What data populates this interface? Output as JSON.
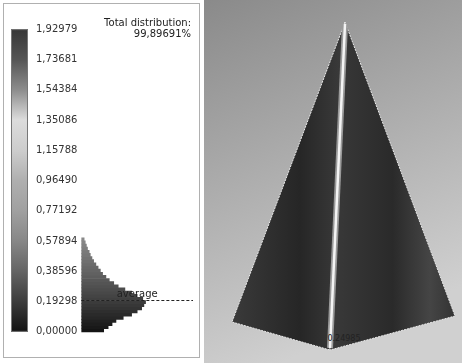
{
  "chart_data": {
    "type": "histogram",
    "orientation": "horizontal",
    "bins": [
      0,
      0.02,
      0.04,
      0.06,
      0.08,
      0.1,
      0.12,
      0.14,
      0.16,
      0.18,
      0.2,
      0.22,
      0.24,
      0.26,
      0.28,
      0.3,
      0.32,
      0.34,
      0.36,
      0.38,
      0.4,
      0.42,
      0.44,
      0.46,
      0.48,
      0.5,
      0.52,
      0.54,
      0.56,
      0.58,
      0.6
    ],
    "counts": [
      40,
      48,
      55,
      62,
      75,
      90,
      100,
      108,
      112,
      115,
      110,
      100,
      90,
      78,
      66,
      58,
      50,
      44,
      38,
      34,
      30,
      26,
      22,
      19,
      16,
      14,
      11,
      9,
      7,
      5
    ],
    "ylim": [
      0,
      1.92979
    ],
    "yticks": [
      {
        "value": 0,
        "label": "0,00000"
      },
      {
        "value": 0.19298,
        "label": "0,19298"
      },
      {
        "value": 0.38596,
        "label": "0,38596"
      },
      {
        "value": 0.57894,
        "label": "0,57894"
      },
      {
        "value": 0.77192,
        "label": "0,77192"
      },
      {
        "value": 0.9649,
        "label": "0,96490"
      },
      {
        "value": 1.15788,
        "label": "1,15788"
      },
      {
        "value": 1.35086,
        "label": "1,35086"
      },
      {
        "value": 1.54384,
        "label": "1,54384"
      },
      {
        "value": 1.73681,
        "label": "1,73681"
      },
      {
        "value": 1.92979,
        "label": "1,92979"
      }
    ],
    "tick_labels": "y",
    "grid": false,
    "annotations": [
      "Total distribution:",
      "99,89691%"
    ],
    "average": {
      "value": 0.2,
      "label": "average"
    }
  },
  "model_view": {
    "probe_value": 0.24985
  }
}
